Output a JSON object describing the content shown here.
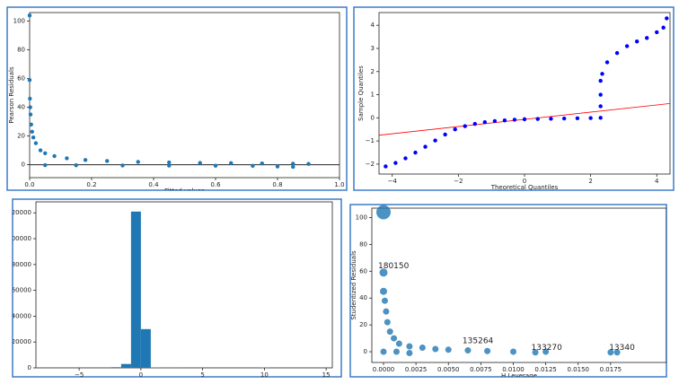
{
  "chart_data": [
    {
      "type": "scatter",
      "xlabel": "Fitted values",
      "ylabel": "Pearson Residuals",
      "color": "#1f77b4",
      "x": [
        0,
        0,
        0.001,
        0.002,
        0.003,
        0.005,
        0.008,
        0.012,
        0.02,
        0.035,
        0.05,
        0.08,
        0.12,
        0.18,
        0.25,
        0.35,
        0.45,
        0.55,
        0.65,
        0.75,
        0.85,
        0.9,
        0.05,
        0.15,
        0.3,
        0.45,
        0.6,
        0.72,
        0.8,
        0.85
      ],
      "values": [
        104,
        59,
        46,
        40,
        35,
        28,
        23,
        19,
        15,
        10,
        8,
        6,
        4.5,
        3.3,
        2.6,
        2,
        1.6,
        1.3,
        1.1,
        0.9,
        0.7,
        0.6,
        -0.3,
        -0.4,
        -0.5,
        -0.6,
        -0.7,
        -0.8,
        -1.2,
        -1.5
      ],
      "hline": 0,
      "xlim": [
        0,
        1
      ],
      "ylim": [
        -9,
        106
      ],
      "xticks": [
        {
          "value": 0,
          "label": "0.0"
        },
        0.2,
        0.4,
        0.6,
        0.8,
        {
          "value": 1,
          "label": "1.0"
        }
      ],
      "yticks": [
        0,
        20,
        40,
        60,
        80,
        100
      ]
    },
    {
      "type": "scatter",
      "xlabel": "Theoretical Quantiles",
      "ylabel": "Sample Quantiles",
      "color": "#0000ff",
      "x": [
        -4.2,
        -3.9,
        -3.6,
        -3.3,
        -3.0,
        -2.7,
        -2.4,
        -2.1,
        -1.8,
        -1.5,
        -1.2,
        -0.9,
        -0.6,
        -0.3,
        0,
        0.4,
        0.8,
        1.2,
        1.6,
        2.0,
        2.3,
        2.3,
        2.3,
        2.3,
        2.35,
        2.5,
        2.8,
        3.1,
        3.4,
        3.7,
        4.0,
        4.2,
        4.3
      ],
      "values": [
        -2.1,
        -1.95,
        -1.75,
        -1.5,
        -1.25,
        -0.98,
        -0.72,
        -0.5,
        -0.36,
        -0.26,
        -0.19,
        -0.14,
        -0.11,
        -0.08,
        -0.06,
        -0.05,
        -0.04,
        -0.03,
        -0.02,
        -0.01,
        0.0,
        0.5,
        1.0,
        1.6,
        1.9,
        2.4,
        2.8,
        3.1,
        3.3,
        3.45,
        3.7,
        3.9,
        4.3
      ],
      "line_x": [
        -4.4,
        4.4
      ],
      "line_y": [
        -0.75,
        0.62
      ],
      "line_color": "#ff0000",
      "xlim": [
        -4.4,
        4.4
      ],
      "ylim": [
        -2.43,
        4.55
      ],
      "xticks": [
        {
          "value": -4,
          "label": "−4"
        },
        {
          "value": -2,
          "label": "−2"
        },
        0,
        2,
        4
      ],
      "yticks": [
        {
          "value": -2,
          "label": "−2"
        },
        {
          "value": -1,
          "label": "−1"
        },
        0,
        1,
        2,
        3,
        4
      ]
    },
    {
      "type": "histogram",
      "color": "#1f77b4",
      "bins": [
        -2.4,
        -1.6,
        -0.8,
        0,
        0.8,
        1.6,
        2.4,
        3.2,
        4.0,
        4.8,
        5.6,
        6.4,
        7.2,
        8.0,
        8.8,
        9.6,
        10.4
      ],
      "values": [
        500,
        3000,
        121000,
        30000,
        300,
        100,
        50,
        20,
        10,
        5,
        5,
        3,
        2,
        2,
        1,
        300
      ],
      "xlim": [
        -8.5,
        15.5
      ],
      "ylim": [
        0,
        128500
      ],
      "xticks": [
        {
          "value": -5,
          "label": "−5"
        },
        0,
        5,
        10,
        15
      ],
      "yticks": [
        0,
        20000,
        40000,
        60000,
        80000,
        100000,
        120000
      ]
    },
    {
      "type": "scatter",
      "xlabel": "H Leverage",
      "ylabel": "Studentized Residuals",
      "color": "#1f77b4",
      "x": [
        0,
        0,
        0,
        0.0001,
        0.0002,
        0.0003,
        0.0005,
        0.0008,
        0.0012,
        0.002,
        0.003,
        0.004,
        0.005,
        0.0065,
        0.008,
        0.01,
        0.0117,
        0.0125,
        0.0175,
        0.018,
        0,
        0.001,
        0.002
      ],
      "values": [
        104,
        59,
        45,
        38,
        30,
        22,
        15,
        10,
        6,
        4,
        3,
        2,
        1.5,
        1,
        0.5,
        0,
        -0.5,
        0,
        -0.5,
        -0.5,
        0,
        0,
        -1
      ],
      "sizes": [
        14,
        7,
        6,
        5,
        5,
        5,
        5,
        5,
        5,
        5,
        5,
        5,
        5,
        5,
        5,
        5,
        5,
        5,
        5,
        5,
        5,
        5,
        5
      ],
      "annotations": [
        {
          "text": "180150",
          "x": 0.0,
          "y": 64
        },
        {
          "text": "135264",
          "x": 0.0065,
          "y": 8
        },
        {
          "text": "133270",
          "x": 0.0118,
          "y": 3
        },
        {
          "text": "13340",
          "x": 0.0178,
          "y": 3
        }
      ],
      "xlim": [
        -0.0009,
        0.0218
      ],
      "ylim": [
        -8,
        107
      ],
      "xticks": [
        {
          "value": 0,
          "label": "0.0000"
        },
        0.0025,
        {
          "value": 0.005,
          "label": "0.0050"
        },
        0.0075,
        {
          "value": 0.01,
          "label": "0.0100"
        },
        0.0125,
        {
          "value": 0.015,
          "label": "0.0150"
        },
        0.0175
      ],
      "yticks": [
        0,
        20,
        40,
        60,
        80,
        100
      ]
    }
  ]
}
